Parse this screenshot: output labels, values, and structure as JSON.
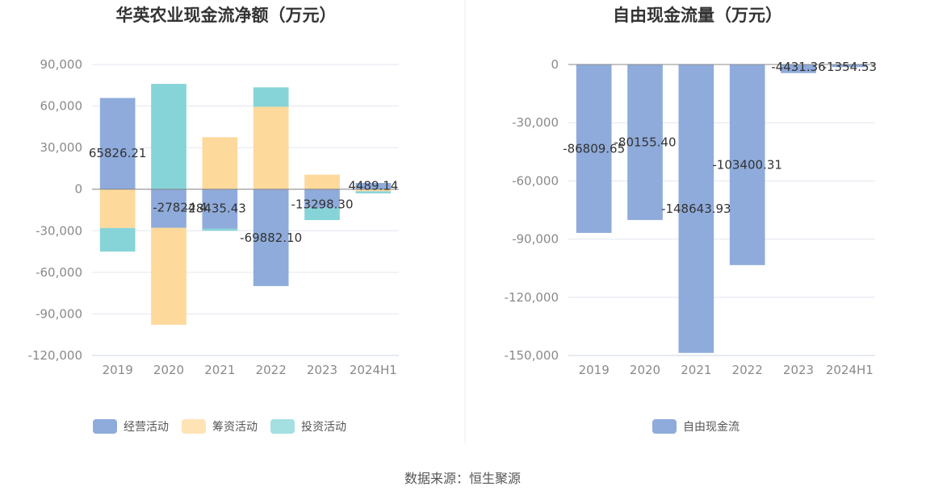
{
  "chart_data": [
    {
      "type": "bar",
      "stacked": true,
      "title": "华英农业现金流净额（万元）",
      "categories": [
        "2019",
        "2020",
        "2021",
        "2022",
        "2023",
        "2024H1"
      ],
      "ylim": [
        -120000,
        90000
      ],
      "yticks": [
        90000,
        60000,
        30000,
        0,
        -30000,
        -60000,
        -90000,
        -120000
      ],
      "ytick_labels": [
        "90,000",
        "60,000",
        "30,000",
        "0",
        "-30,000",
        "-60,000",
        "-90,000",
        "-120,000"
      ],
      "grid": true,
      "legend_position": "bottom",
      "series": [
        {
          "name": "经营活动",
          "color": "#8eabdb",
          "values": [
            65826.21,
            -27824.4,
            -28435.43,
            -69882.1,
            -13298.3,
            4489.14
          ]
        },
        {
          "name": "筹资活动",
          "color": "#fdd99c",
          "values": [
            -28000,
            -70000,
            37500,
            59500,
            10500,
            -1500
          ]
        },
        {
          "name": "投资活动",
          "color": "#86d4d8",
          "values": [
            -17000,
            76000,
            -1500,
            14000,
            -9000,
            -1500
          ]
        }
      ],
      "data_labels": [
        "65826.21",
        "-27824.4",
        "-28435.43",
        "-69882.10",
        "-13298.30",
        "4489.14"
      ]
    },
    {
      "type": "bar",
      "title": "自由现金流量（万元）",
      "categories": [
        "2019",
        "2020",
        "2021",
        "2022",
        "2023",
        "2024H1"
      ],
      "ylim": [
        -150000,
        0
      ],
      "yticks": [
        0,
        -30000,
        -60000,
        -90000,
        -120000,
        -150000
      ],
      "ytick_labels": [
        "0",
        "-30,000",
        "-60,000",
        "-90,000",
        "-120,000",
        "-150,000"
      ],
      "grid": true,
      "legend_position": "bottom",
      "series": [
        {
          "name": "自由现金流",
          "color": "#8eabdb",
          "values": [
            -86809.65,
            -80155.4,
            -148643.93,
            -103400.31,
            -4431.36,
            -1354.53
          ]
        }
      ],
      "data_labels": [
        "-86809.65",
        "-80155.40",
        "-148643.93",
        "-103400.31",
        "-4431.36",
        "-1354.53"
      ]
    }
  ],
  "footer": {
    "source": "数据来源：恒生聚源"
  }
}
